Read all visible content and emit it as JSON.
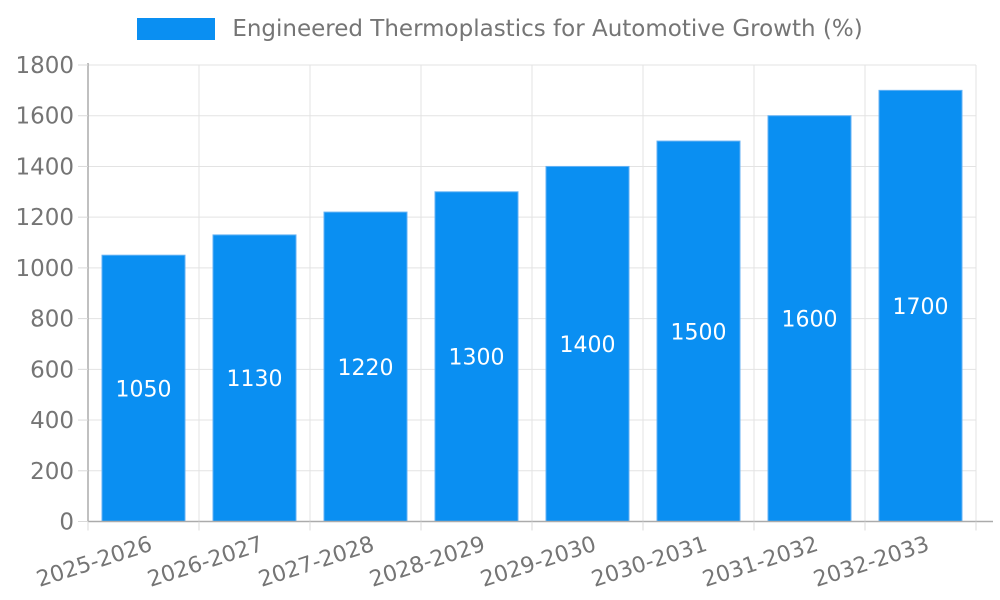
{
  "legend": {
    "label": "Engineered Thermoplastics for Automotive Growth (%)"
  },
  "chart_data": {
    "type": "bar",
    "title": "Engineered Thermoplastics for Automotive Growth (%)",
    "categories": [
      "2025-2026",
      "2026-2027",
      "2027-2028",
      "2028-2029",
      "2029-2030",
      "2030-2031",
      "2031-2032",
      "2032-2033"
    ],
    "values": [
      1050,
      1130,
      1220,
      1300,
      1400,
      1500,
      1600,
      1700
    ],
    "bar_labels": [
      "1050",
      "1130",
      "1220",
      "1300",
      "1400",
      "1500",
      "1600",
      "1700"
    ],
    "xlabel": "",
    "ylabel": "",
    "ylim": [
      0,
      1800
    ],
    "yticks": [
      0,
      200,
      400,
      600,
      800,
      1000,
      1200,
      1400,
      1600,
      1800
    ],
    "grid": "horizontal and vertical",
    "legend_position": "top-center",
    "x_tick_label_rotation_deg": -18,
    "colors": {
      "bar": "#0a8ff2",
      "bar_edge": "#64b2f4",
      "bar_label": "#ffffff",
      "axis": "#ababab",
      "grid": "#e3e3e3",
      "tick": "#d9d9d9",
      "tick_label": "#757575",
      "title": "#757575",
      "background": "#ffffff"
    }
  }
}
